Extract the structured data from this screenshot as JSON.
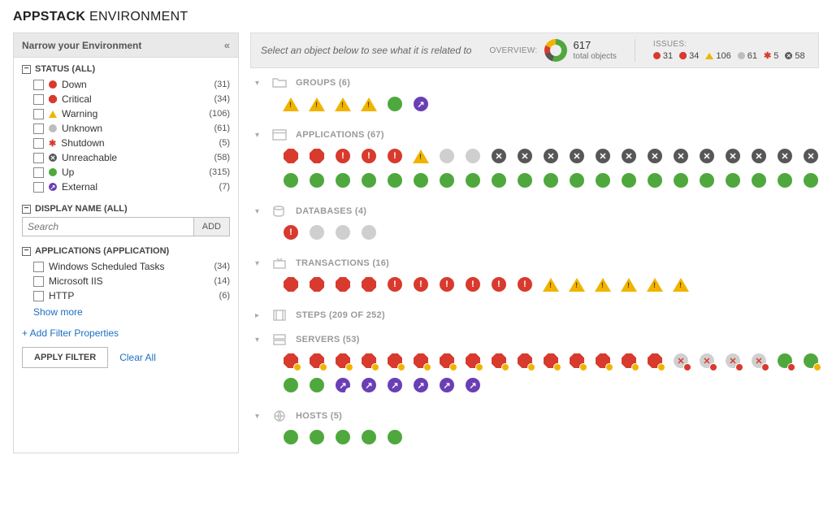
{
  "title_prefix": "APPSTACK",
  "title_rest": "ENVIRONMENT",
  "sidebar": {
    "header": "Narrow your Environment",
    "status": {
      "title": "STATUS (ALL)",
      "items": [
        {
          "label": "Down",
          "count": "(31)",
          "icon": "circle",
          "color": "#d83a2e"
        },
        {
          "label": "Critical",
          "count": "(34)",
          "icon": "octagon",
          "color": "#d83a2e"
        },
        {
          "label": "Warning",
          "count": "(106)",
          "icon": "triangle",
          "color": "#f0b400"
        },
        {
          "label": "Unknown",
          "count": "(61)",
          "icon": "circle",
          "color": "#bdbdbd"
        },
        {
          "label": "Shutdown",
          "count": "(5)",
          "icon": "x",
          "color": "#d83a2e"
        },
        {
          "label": "Unreachable",
          "count": "(58)",
          "icon": "xcircle",
          "color": "#575757"
        },
        {
          "label": "Up",
          "count": "(315)",
          "icon": "circle",
          "color": "#4fa83d"
        },
        {
          "label": "External",
          "count": "(7)",
          "icon": "ext",
          "color": "#6a3fb5"
        }
      ]
    },
    "display_name": {
      "title": "DISPLAY NAME (ALL)",
      "placeholder": "Search",
      "add_btn": "ADD"
    },
    "applications": {
      "title": "APPLICATIONS (APPLICATION)",
      "items": [
        {
          "label": "Windows Scheduled Tasks",
          "count": "(34)"
        },
        {
          "label": "Microsoft IIS",
          "count": "(14)"
        },
        {
          "label": "HTTP",
          "count": "(6)"
        }
      ],
      "show_more": "Show more"
    },
    "add_filter": "+ Add Filter Properties",
    "apply_btn": "APPLY FILTER",
    "clear_link": "Clear All"
  },
  "overview": {
    "hint": "Select an object below to see what it is related to",
    "label": "OVERVIEW:",
    "total_num": "617",
    "total_label": "total objects",
    "donut_colors": [
      "#4fa83d",
      "#d83a2e",
      "#f0b400",
      "#575757"
    ],
    "issues_label": "ISSUES:",
    "issues": [
      {
        "icon": "circle",
        "color": "#d83a2e",
        "count": "31"
      },
      {
        "icon": "octagon",
        "color": "#d83a2e",
        "count": "34"
      },
      {
        "icon": "triangle",
        "color": "#f0b400",
        "count": "106"
      },
      {
        "icon": "circle",
        "color": "#bdbdbd",
        "count": "61"
      },
      {
        "icon": "x",
        "color": "#d83a2e",
        "count": "5"
      },
      {
        "icon": "xcircle",
        "color": "#575757",
        "count": "58"
      }
    ]
  },
  "sections": [
    {
      "key": "groups",
      "title": "GROUPS (6)",
      "icon": "folder",
      "expanded": true,
      "objects": [
        {
          "t": "tri"
        },
        {
          "t": "tri"
        },
        {
          "t": "tri"
        },
        {
          "t": "tri"
        },
        {
          "t": "circ",
          "c": "#4fa83d"
        },
        {
          "t": "ext"
        }
      ]
    },
    {
      "key": "applications",
      "title": "APPLICATIONS (67)",
      "icon": "window",
      "expanded": true,
      "objects": [
        {
          "t": "octa",
          "c": "#d83a2e"
        },
        {
          "t": "octa",
          "c": "#d83a2e"
        },
        {
          "t": "circ",
          "c": "#d83a2e",
          "g": "!"
        },
        {
          "t": "circ",
          "c": "#d83a2e",
          "g": "!"
        },
        {
          "t": "circ",
          "c": "#d83a2e",
          "g": "!"
        },
        {
          "t": "tri"
        },
        {
          "t": "circ",
          "c": "#cfcfcf"
        },
        {
          "t": "circ",
          "c": "#cfcfcf"
        },
        {
          "t": "xcirc"
        },
        {
          "t": "xcirc"
        },
        {
          "t": "xcirc"
        },
        {
          "t": "xcirc"
        },
        {
          "t": "xcirc"
        },
        {
          "t": "xcirc"
        },
        {
          "t": "xcirc"
        },
        {
          "t": "xcirc"
        },
        {
          "t": "xcirc"
        },
        {
          "t": "xcirc"
        },
        {
          "t": "xcirc"
        },
        {
          "t": "xcirc"
        },
        {
          "t": "xcirc"
        },
        {
          "t": "circ",
          "c": "#4fa83d"
        },
        {
          "t": "circ",
          "c": "#4fa83d"
        },
        {
          "t": "circ",
          "c": "#4fa83d"
        },
        {
          "t": "circ",
          "c": "#4fa83d"
        },
        {
          "t": "circ",
          "c": "#4fa83d"
        },
        {
          "t": "circ",
          "c": "#4fa83d"
        },
        {
          "t": "circ",
          "c": "#4fa83d"
        },
        {
          "t": "circ",
          "c": "#4fa83d"
        },
        {
          "t": "circ",
          "c": "#4fa83d"
        },
        {
          "t": "circ",
          "c": "#4fa83d"
        },
        {
          "t": "circ",
          "c": "#4fa83d"
        },
        {
          "t": "circ",
          "c": "#4fa83d"
        },
        {
          "t": "circ",
          "c": "#4fa83d"
        },
        {
          "t": "circ",
          "c": "#4fa83d"
        },
        {
          "t": "circ",
          "c": "#4fa83d"
        },
        {
          "t": "circ",
          "c": "#4fa83d"
        },
        {
          "t": "circ",
          "c": "#4fa83d"
        },
        {
          "t": "circ",
          "c": "#4fa83d"
        },
        {
          "t": "circ",
          "c": "#4fa83d"
        },
        {
          "t": "circ",
          "c": "#4fa83d"
        },
        {
          "t": "circ",
          "c": "#4fa83d"
        }
      ]
    },
    {
      "key": "databases",
      "title": "DATABASES (4)",
      "icon": "db",
      "expanded": true,
      "objects": [
        {
          "t": "circ",
          "c": "#d83a2e",
          "g": "!"
        },
        {
          "t": "circ",
          "c": "#cfcfcf"
        },
        {
          "t": "circ",
          "c": "#cfcfcf"
        },
        {
          "t": "circ",
          "c": "#cfcfcf"
        }
      ]
    },
    {
      "key": "transactions",
      "title": "TRANSACTIONS (16)",
      "icon": "tv",
      "expanded": true,
      "objects": [
        {
          "t": "octa",
          "c": "#d83a2e"
        },
        {
          "t": "octa",
          "c": "#d83a2e"
        },
        {
          "t": "octa",
          "c": "#d83a2e"
        },
        {
          "t": "octa",
          "c": "#d83a2e"
        },
        {
          "t": "circ",
          "c": "#d83a2e",
          "g": "!"
        },
        {
          "t": "circ",
          "c": "#d83a2e",
          "g": "!"
        },
        {
          "t": "circ",
          "c": "#d83a2e",
          "g": "!"
        },
        {
          "t": "circ",
          "c": "#d83a2e",
          "g": "!"
        },
        {
          "t": "circ",
          "c": "#d83a2e",
          "g": "!"
        },
        {
          "t": "circ",
          "c": "#d83a2e",
          "g": "!"
        },
        {
          "t": "tri"
        },
        {
          "t": "tri"
        },
        {
          "t": "tri"
        },
        {
          "t": "tri"
        },
        {
          "t": "tri"
        },
        {
          "t": "tri"
        }
      ]
    },
    {
      "key": "steps",
      "title": "STEPS (209 OF 252)",
      "icon": "film",
      "expanded": false,
      "objects": []
    },
    {
      "key": "servers",
      "title": "SERVERS (53)",
      "icon": "server",
      "expanded": true,
      "objects": [
        {
          "t": "octa",
          "c": "#d83a2e",
          "b": "#f0b400"
        },
        {
          "t": "octa",
          "c": "#d83a2e",
          "b": "#f0b400"
        },
        {
          "t": "octa",
          "c": "#d83a2e",
          "b": "#f0b400"
        },
        {
          "t": "octa",
          "c": "#d83a2e",
          "b": "#f0b400"
        },
        {
          "t": "octa",
          "c": "#d83a2e",
          "b": "#f0b400"
        },
        {
          "t": "octa",
          "c": "#d83a2e",
          "b": "#f0b400"
        },
        {
          "t": "octa",
          "c": "#d83a2e",
          "b": "#f0b400"
        },
        {
          "t": "octa",
          "c": "#d83a2e",
          "b": "#f0b400"
        },
        {
          "t": "octa",
          "c": "#d83a2e",
          "b": "#f0b400"
        },
        {
          "t": "octa",
          "c": "#d83a2e",
          "b": "#f0b400"
        },
        {
          "t": "octa",
          "c": "#d83a2e",
          "b": "#f0b400"
        },
        {
          "t": "octa",
          "c": "#d83a2e",
          "b": "#f0b400"
        },
        {
          "t": "octa",
          "c": "#d83a2e",
          "b": "#f0b400"
        },
        {
          "t": "octa",
          "c": "#d83a2e",
          "b": "#f0b400"
        },
        {
          "t": "octa",
          "c": "#d83a2e",
          "b": "#f0b400"
        },
        {
          "t": "xgrey",
          "b": "#d83a2e"
        },
        {
          "t": "xgrey",
          "b": "#d83a2e"
        },
        {
          "t": "xgrey",
          "b": "#d83a2e"
        },
        {
          "t": "xgrey",
          "b": "#d83a2e"
        },
        {
          "t": "circ",
          "c": "#4fa83d",
          "b": "#d83a2e"
        },
        {
          "t": "circ",
          "c": "#4fa83d",
          "b": "#f0b400"
        },
        {
          "t": "circ",
          "c": "#4fa83d"
        },
        {
          "t": "circ",
          "c": "#4fa83d"
        },
        {
          "t": "ext",
          "b": "#fff"
        },
        {
          "t": "ext"
        },
        {
          "t": "ext"
        },
        {
          "t": "ext"
        },
        {
          "t": "ext"
        },
        {
          "t": "ext"
        }
      ]
    },
    {
      "key": "hosts",
      "title": "HOSTS (5)",
      "icon": "globe",
      "expanded": true,
      "objects": [
        {
          "t": "circ",
          "c": "#4fa83d"
        },
        {
          "t": "circ",
          "c": "#4fa83d"
        },
        {
          "t": "circ",
          "c": "#4fa83d"
        },
        {
          "t": "circ",
          "c": "#4fa83d"
        },
        {
          "t": "circ",
          "c": "#4fa83d"
        }
      ]
    }
  ]
}
